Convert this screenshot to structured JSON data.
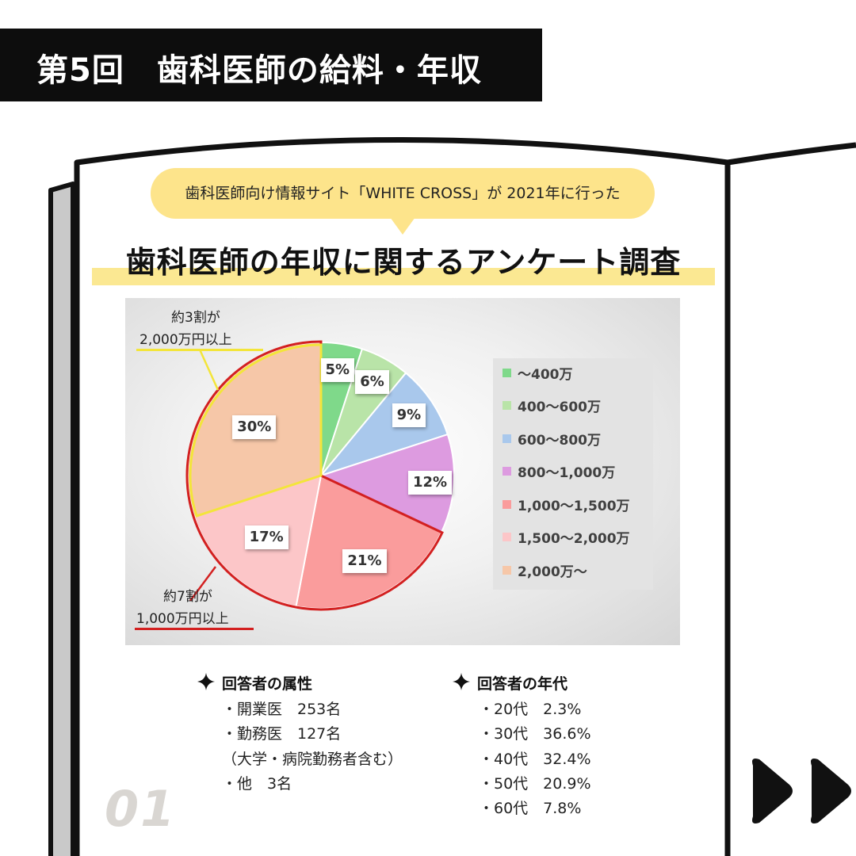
{
  "header": {
    "title": "第5回　歯科医師の給料・年収"
  },
  "bubble": {
    "text": "歯科医師向け情報サイト「WHITE CROSS」が 2021年に行った"
  },
  "main_title": "歯科医師の年収に関するアンケート調査",
  "annotations": {
    "top_line1": "約3割が",
    "top_line2": "2,000万円以上",
    "bottom_line1": "約7割が",
    "bottom_line2": "1,000万円以上"
  },
  "chart_data": {
    "type": "pie",
    "categories": [
      "～400万",
      "400～600万",
      "600～800万",
      "800～1,000万",
      "1,000～1,500万",
      "1,500～2,000万",
      "2,000万～"
    ],
    "values": [
      5,
      6,
      9,
      12,
      21,
      17,
      30
    ],
    "value_labels": [
      "5%",
      "6%",
      "9%",
      "12%",
      "21%",
      "17%",
      "30%"
    ],
    "colors": [
      "#7fd98a",
      "#b9e4a8",
      "#a9c8ec",
      "#dd9be0",
      "#fa9c9c",
      "#fcc6c8",
      "#f6c7a8"
    ],
    "legend_position": "right",
    "highlight_colors": {
      "top_30pct": "#f3e53a",
      "top_70pct": "#d32020"
    }
  },
  "respondents": {
    "attr_title": "回答者の属性",
    "attr_lines": [
      "・開業医　253名",
      "・勤務医　127名",
      "（大学・病院勤務者含む）",
      "・他　3名"
    ],
    "age_title": "回答者の年代",
    "age_lines": [
      "・20代　2.3%",
      "・30代　36.6%",
      "・40代　32.4%",
      "・50代　20.9%",
      "・60代　7.8%"
    ]
  },
  "page_number": "01",
  "icons": {
    "bullet": "sparkle-icon",
    "next": "double-chevron-right-icon"
  }
}
